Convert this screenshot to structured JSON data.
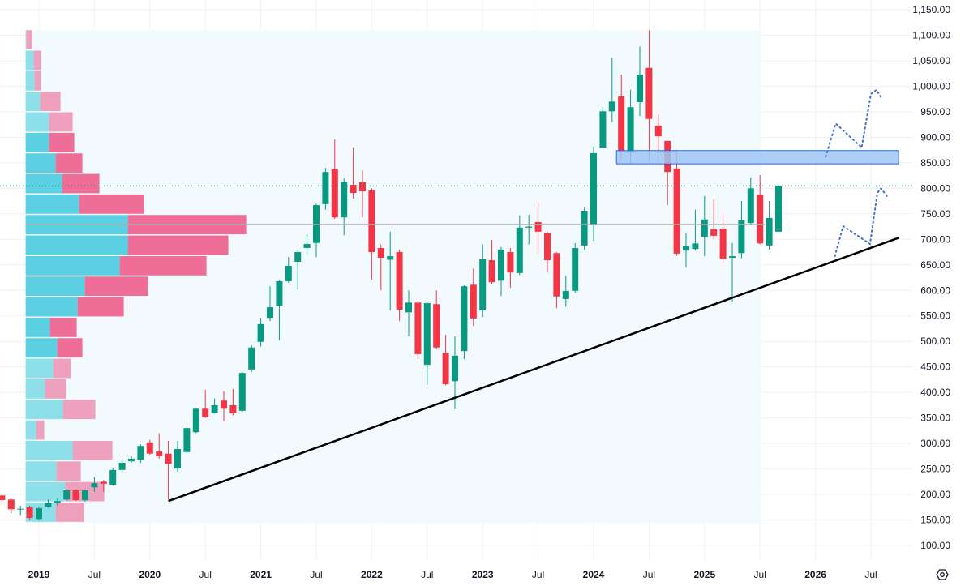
{
  "chart_data": {
    "type": "candlestick",
    "title": "",
    "interval": "monthly",
    "ylim": [
      70,
      1170
    ],
    "y_ticks": [
      100,
      150,
      200,
      250,
      300,
      350,
      400,
      450,
      500,
      550,
      600,
      650,
      700,
      750,
      800,
      850,
      900,
      950,
      1000,
      1050,
      1100,
      1150
    ],
    "y_tick_labels": [
      "100.00",
      "150.00",
      "200.00",
      "250.00",
      "300.00",
      "350.00",
      "400.00",
      "450.00",
      "500.00",
      "550.00",
      "600.00",
      "650.00",
      "700.00",
      "750.00",
      "800.00",
      "850.00",
      "900.00",
      "950.00",
      "1,000.00",
      "1,050.00",
      "1,100.00",
      "1,150.00"
    ],
    "x_ticks": [
      {
        "label": "2019",
        "date": "2019-01",
        "year": true
      },
      {
        "label": "Jul",
        "date": "2019-07"
      },
      {
        "label": "2020",
        "date": "2020-01",
        "year": true
      },
      {
        "label": "Jul",
        "date": "2020-07"
      },
      {
        "label": "2021",
        "date": "2021-01",
        "year": true
      },
      {
        "label": "Jul",
        "date": "2021-07"
      },
      {
        "label": "2022",
        "date": "2022-01",
        "year": true
      },
      {
        "label": "Jul",
        "date": "2022-07"
      },
      {
        "label": "2023",
        "date": "2023-01",
        "year": true
      },
      {
        "label": "Jul",
        "date": "2023-07"
      },
      {
        "label": "2024",
        "date": "2024-01",
        "year": true
      },
      {
        "label": "Jul",
        "date": "2024-07"
      },
      {
        "label": "2025",
        "date": "2025-01",
        "year": true
      },
      {
        "label": "Jul",
        "date": "2025-07"
      },
      {
        "label": "2026",
        "date": "2026-01",
        "year": true
      },
      {
        "label": "Jul",
        "date": "2026-07"
      }
    ],
    "candle_fields": [
      "date",
      "open",
      "high",
      "low",
      "close"
    ],
    "candles": [
      [
        "2018-09",
        198,
        200,
        185,
        189
      ],
      [
        "2018-10",
        190,
        192,
        163,
        171
      ],
      [
        "2018-11",
        171,
        178,
        158,
        172
      ],
      [
        "2018-12",
        175,
        178,
        150,
        154
      ],
      [
        "2019-01",
        152,
        175,
        150,
        173
      ],
      [
        "2019-02",
        176,
        190,
        174,
        183
      ],
      [
        "2019-03",
        183,
        193,
        178,
        187
      ],
      [
        "2019-04",
        190,
        210,
        188,
        208
      ],
      [
        "2019-05",
        208,
        210,
        187,
        189
      ],
      [
        "2019-06",
        189,
        210,
        186,
        208
      ],
      [
        "2019-07",
        214,
        234,
        205,
        222
      ],
      [
        "2019-08",
        225,
        228,
        205,
        221
      ],
      [
        "2019-09",
        219,
        252,
        217,
        248
      ],
      [
        "2019-10",
        248,
        270,
        242,
        262
      ],
      [
        "2019-11",
        265,
        275,
        262,
        270
      ],
      [
        "2019-12",
        268,
        298,
        262,
        295
      ],
      [
        "2020-01",
        302,
        307,
        278,
        280
      ],
      [
        "2020-02",
        284,
        320,
        270,
        275
      ],
      [
        "2020-03",
        280,
        305,
        190,
        260
      ],
      [
        "2020-04",
        251,
        305,
        245,
        289
      ],
      [
        "2020-05",
        283,
        333,
        280,
        330
      ],
      [
        "2020-06",
        322,
        370,
        320,
        368
      ],
      [
        "2020-07",
        368,
        405,
        350,
        352
      ],
      [
        "2020-08",
        359,
        388,
        358,
        375
      ],
      [
        "2020-09",
        384,
        402,
        343,
        368
      ],
      [
        "2020-10",
        375,
        407,
        355,
        359
      ],
      [
        "2020-11",
        364,
        440,
        362,
        438
      ],
      [
        "2020-12",
        445,
        492,
        440,
        488
      ],
      [
        "2021-01",
        499,
        546,
        490,
        534
      ],
      [
        "2021-02",
        546,
        608,
        540,
        567
      ],
      [
        "2021-03",
        570,
        620,
        502,
        618
      ],
      [
        "2021-04",
        618,
        665,
        615,
        648
      ],
      [
        "2021-05",
        656,
        678,
        602,
        675
      ],
      [
        "2021-06",
        683,
        710,
        665,
        691
      ],
      [
        "2021-07",
        693,
        770,
        665,
        767
      ],
      [
        "2021-08",
        769,
        840,
        758,
        832
      ],
      [
        "2021-09",
        838,
        896,
        740,
        743
      ],
      [
        "2021-10",
        743,
        820,
        708,
        813
      ],
      [
        "2021-11",
        807,
        880,
        780,
        791
      ],
      [
        "2021-12",
        812,
        835,
        743,
        794
      ],
      [
        "2022-01",
        796,
        800,
        621,
        675
      ],
      [
        "2022-02",
        683,
        690,
        600,
        664
      ],
      [
        "2022-03",
        660,
        715,
        561,
        667
      ],
      [
        "2022-04",
        675,
        680,
        540,
        562
      ],
      [
        "2022-05",
        557,
        600,
        510,
        576
      ],
      [
        "2022-06",
        576,
        580,
        465,
        475
      ],
      [
        "2022-07",
        454,
        578,
        415,
        575
      ],
      [
        "2022-08",
        573,
        600,
        485,
        488
      ],
      [
        "2022-09",
        478,
        513,
        414,
        416
      ],
      [
        "2022-10",
        422,
        510,
        367,
        472
      ],
      [
        "2022-11",
        481,
        610,
        465,
        608
      ],
      [
        "2022-12",
        611,
        643,
        530,
        545
      ],
      [
        "2023-01",
        561,
        690,
        548,
        661
      ],
      [
        "2023-02",
        659,
        699,
        612,
        616
      ],
      [
        "2023-03",
        619,
        685,
        589,
        680
      ],
      [
        "2023-04",
        675,
        683,
        605,
        635
      ],
      [
        "2023-05",
        634,
        747,
        630,
        723
      ],
      [
        "2023-06",
        723,
        748,
        690,
        725
      ],
      [
        "2023-07",
        734,
        772,
        673,
        715
      ],
      [
        "2023-08",
        712,
        715,
        635,
        659
      ],
      [
        "2023-09",
        673,
        675,
        565,
        588
      ],
      [
        "2023-10",
        583,
        628,
        568,
        599
      ],
      [
        "2023-11",
        599,
        693,
        595,
        683
      ],
      [
        "2023-12",
        688,
        762,
        680,
        756
      ],
      [
        "2024-01",
        729,
        882,
        697,
        869
      ],
      [
        "2024-02",
        880,
        960,
        878,
        951
      ],
      [
        "2024-03",
        951,
        1056,
        930,
        970
      ],
      [
        "2024-04",
        980,
        1023,
        856,
        872
      ],
      [
        "2024-05",
        870,
        993,
        848,
        959
      ],
      [
        "2024-06",
        969,
        1078,
        942,
        1023
      ],
      [
        "2024-07",
        1036,
        1110,
        851,
        936
      ],
      [
        "2024-08",
        923,
        945,
        850,
        902
      ],
      [
        "2024-09",
        893,
        893,
        767,
        832
      ],
      [
        "2024-10",
        839,
        875,
        668,
        672
      ],
      [
        "2024-11",
        678,
        712,
        645,
        686
      ],
      [
        "2024-12",
        681,
        758,
        678,
        692
      ],
      [
        "2025-01",
        705,
        785,
        667,
        739
      ],
      [
        "2025-02",
        720,
        778,
        700,
        707
      ],
      [
        "2025-03",
        721,
        747,
        652,
        662
      ],
      [
        "2025-04",
        664,
        693,
        578,
        667
      ],
      [
        "2025-05",
        673,
        775,
        663,
        737
      ],
      [
        "2025-06",
        732,
        821,
        730,
        800
      ],
      [
        "2025-07",
        788,
        826,
        690,
        692
      ],
      [
        "2025-08",
        688,
        775,
        680,
        742
      ],
      [
        "2025-09",
        715,
        805,
        715,
        805
      ]
    ],
    "current_price": 805,
    "point_of_control": 729,
    "volume_profile": {
      "range_start": "2018-12",
      "range_end": "2025-09",
      "price_top": 1110,
      "price_bottom": 144,
      "bins_top_to_bottom": [
        {
          "up": 1,
          "down": 7,
          "value_area": false
        },
        {
          "up": 10,
          "down": 9,
          "value_area": false
        },
        {
          "up": 11,
          "down": 8,
          "value_area": false
        },
        {
          "up": 18,
          "down": 25,
          "value_area": false
        },
        {
          "up": 29,
          "down": 29,
          "value_area": false
        },
        {
          "up": 29,
          "down": 31,
          "value_area": true
        },
        {
          "up": 37,
          "down": 33,
          "value_area": true
        },
        {
          "up": 45,
          "down": 46,
          "value_area": true
        },
        {
          "up": 66,
          "down": 80,
          "value_area": true
        },
        {
          "up": 126,
          "down": 146,
          "value_area": true
        },
        {
          "up": 126,
          "down": 124,
          "value_area": true
        },
        {
          "up": 116,
          "down": 107,
          "value_area": true
        },
        {
          "up": 73,
          "down": 78,
          "value_area": true
        },
        {
          "up": 64,
          "down": 57,
          "value_area": true
        },
        {
          "up": 30,
          "down": 33,
          "value_area": true
        },
        {
          "up": 39,
          "down": 31,
          "value_area": true
        },
        {
          "up": 34,
          "down": 22,
          "value_area": false
        },
        {
          "up": 24,
          "down": 26,
          "value_area": false
        },
        {
          "up": 46,
          "down": 40,
          "value_area": false
        },
        {
          "up": 13,
          "down": 10,
          "value_area": false
        },
        {
          "up": 58,
          "down": 49,
          "value_area": false
        },
        {
          "up": 38,
          "down": 30,
          "value_area": false
        },
        {
          "up": 49,
          "down": 48,
          "value_area": false
        },
        {
          "up": 37,
          "down": 35,
          "value_area": false
        }
      ]
    },
    "trendline": [
      {
        "date": "2020-03",
        "price": 187
      },
      {
        "date": "2026-10",
        "price": 703
      }
    ],
    "resistance_zone": {
      "from": "2024-04",
      "to": "2026-10",
      "low": 848,
      "high": 874
    },
    "projection_paths": [
      [
        [
          85.1,
          862
        ],
        [
          86.2,
          927
        ],
        [
          89,
          880
        ],
        [
          90,
          985
        ],
        [
          90.6,
          993
        ],
        [
          91.2,
          975
        ]
      ],
      [
        [
          86.1,
          667
        ],
        [
          87,
          726
        ],
        [
          89.9,
          691
        ],
        [
          90.7,
          791
        ],
        [
          91.1,
          800
        ],
        [
          91.8,
          783
        ]
      ]
    ],
    "colors": {
      "up": "#089981",
      "down": "#f23645",
      "zone": "#9fc6f5",
      "zone_border": "#2962ff",
      "projection": "#3d6fd6",
      "profile_up": "#5ad0e2",
      "profile_down": "#ee6e98",
      "profile_up_light": "#8ddfe9",
      "profile_down_light": "#efa0bc",
      "profile_bg": "#f2fafd",
      "grid": "#eef1f5",
      "current_price_line": "#089981",
      "poc": "#a9acb2"
    }
  }
}
